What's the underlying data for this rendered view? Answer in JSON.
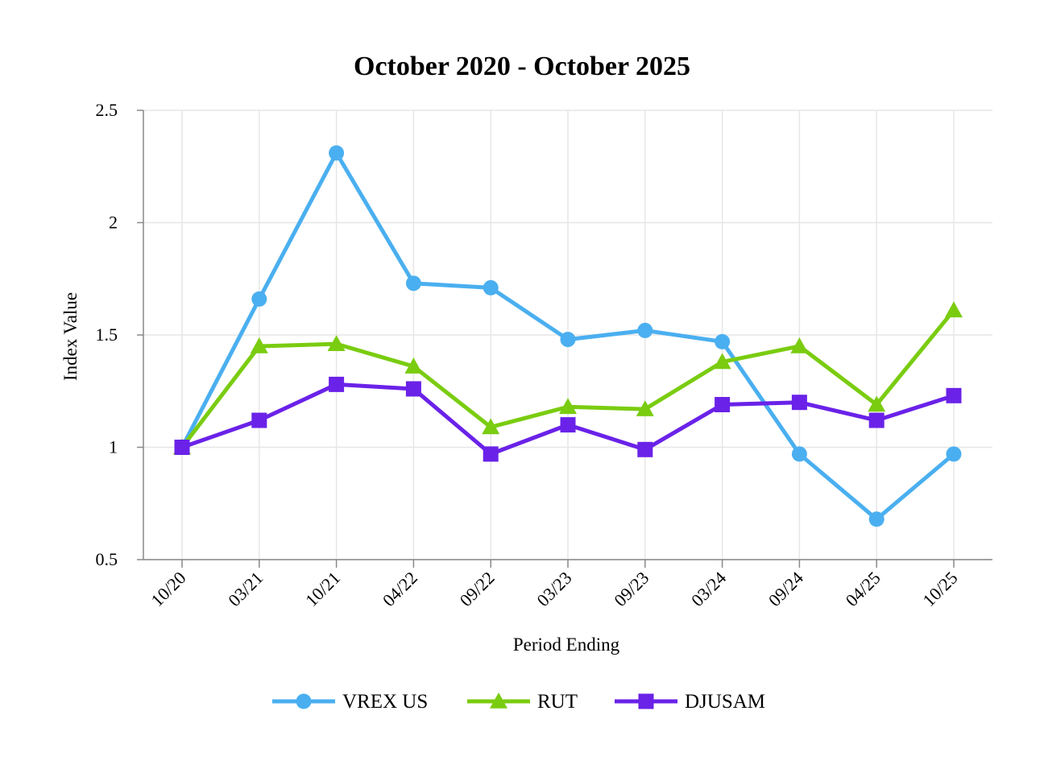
{
  "chart_data": {
    "type": "line",
    "title": "October 2020 - October 2025",
    "xlabel": "Period Ending",
    "ylabel": "Index Value",
    "categories": [
      "10/20",
      "03/21",
      "10/21",
      "04/22",
      "09/22",
      "03/23",
      "09/23",
      "03/24",
      "09/24",
      "04/25",
      "10/25"
    ],
    "ylim": [
      0.5,
      2.5
    ],
    "yticks": [
      0.5,
      1,
      1.5,
      2,
      2.5
    ],
    "ytick_labels": [
      "0.5",
      "1",
      "1.5",
      "2",
      "2.5"
    ],
    "grid": true,
    "legend_position": "bottom",
    "series": [
      {
        "name": "VREX US",
        "color": "#4aaff0",
        "marker": "circle",
        "values": [
          1.0,
          1.66,
          2.31,
          1.73,
          1.71,
          1.48,
          1.52,
          1.47,
          0.97,
          0.68,
          0.97
        ]
      },
      {
        "name": "RUT",
        "color": "#7acc10",
        "marker": "triangle",
        "values": [
          1.0,
          1.45,
          1.46,
          1.36,
          1.09,
          1.18,
          1.17,
          1.38,
          1.45,
          1.19,
          1.61
        ]
      },
      {
        "name": "DJUSAM",
        "color": "#6a22e8",
        "marker": "square",
        "values": [
          1.0,
          1.12,
          1.28,
          1.26,
          0.97,
          1.1,
          0.99,
          1.19,
          1.2,
          1.12,
          1.23
        ]
      }
    ]
  }
}
